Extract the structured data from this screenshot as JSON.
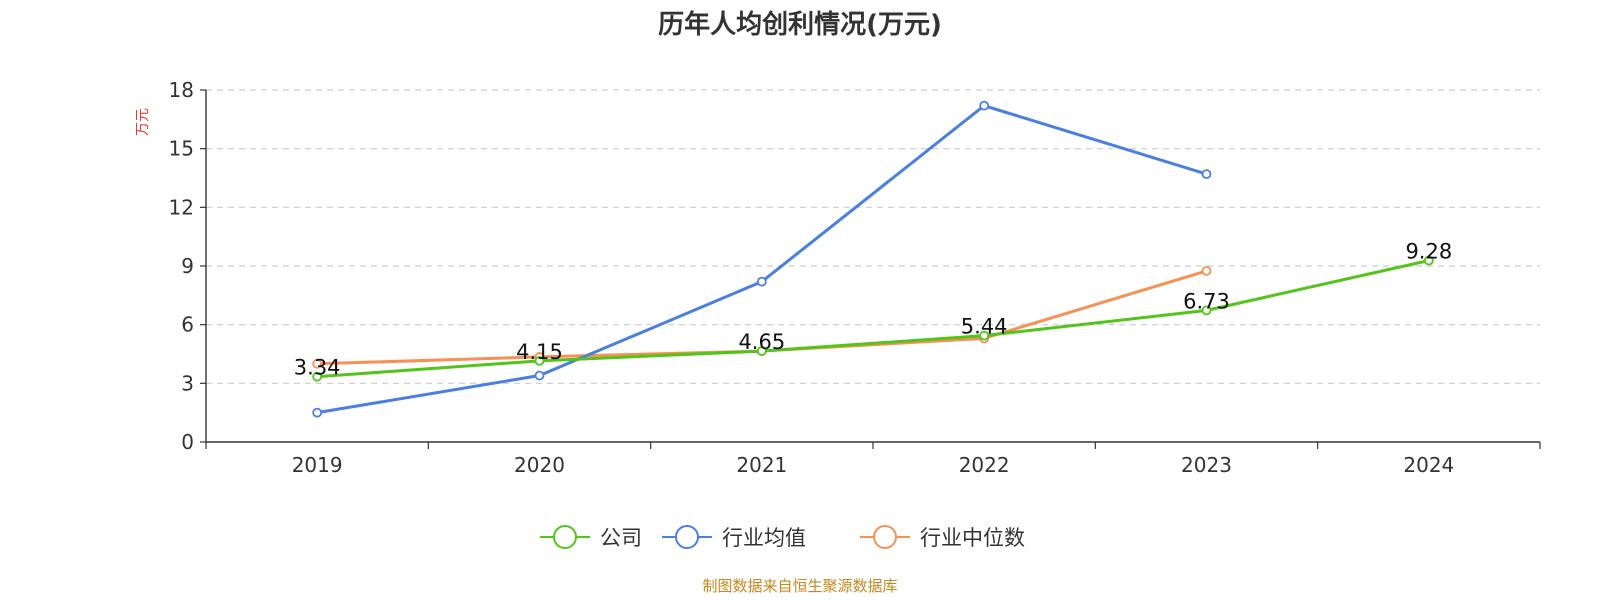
{
  "chart_data": {
    "type": "line",
    "title": "历年人均创利情况(万元)",
    "ylabel": "万元",
    "xlabel": "",
    "categories": [
      "2019",
      "2020",
      "2021",
      "2022",
      "2023",
      "2024"
    ],
    "ylim": [
      0,
      18
    ],
    "yticks": [
      0,
      3,
      6,
      9,
      12,
      15,
      18
    ],
    "grid": true,
    "legend_position": "bottom",
    "series": [
      {
        "name": "公司",
        "color": "#52c41a",
        "values": [
          3.34,
          4.15,
          4.65,
          5.44,
          6.73,
          9.28
        ],
        "labels": [
          "3.34",
          "4.15",
          "4.65",
          "5.44",
          "6.73",
          "9.28"
        ]
      },
      {
        "name": "行业均值",
        "color": "#4a7fe0",
        "values": [
          1.5,
          3.4,
          8.2,
          17.2,
          13.7,
          null
        ]
      },
      {
        "name": "行业中位数",
        "color": "#f79055",
        "values": [
          4.0,
          4.35,
          4.65,
          5.3,
          8.75,
          null
        ]
      }
    ]
  },
  "source": "制图数据来自恒生聚源数据库"
}
